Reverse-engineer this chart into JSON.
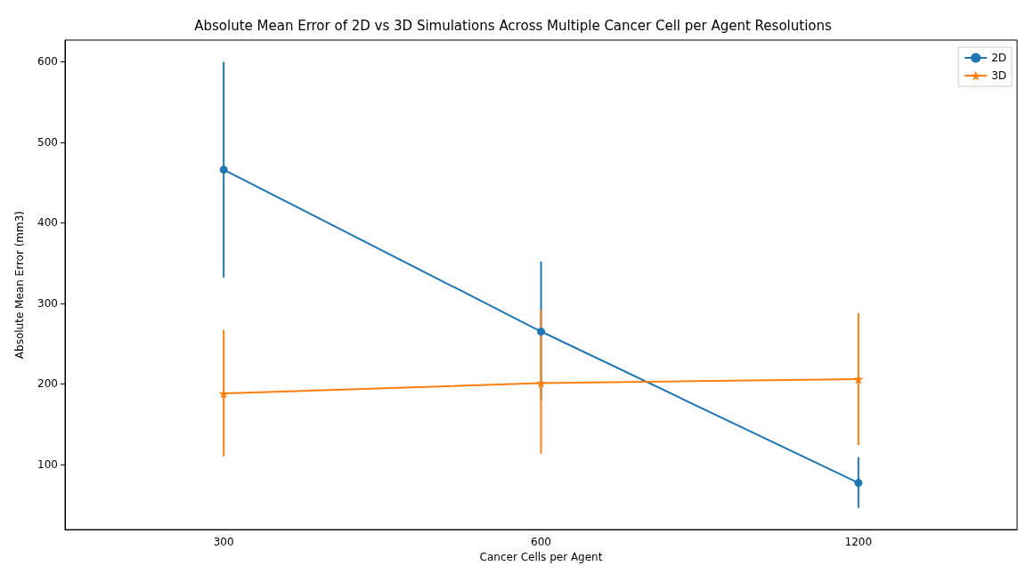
{
  "chart_data": {
    "type": "line",
    "title": "Absolute Mean Error of 2D vs 3D Simulations Across Multiple Cancer Cell per Agent Resolutions",
    "xlabel": "Cancer Cells per Agent",
    "ylabel": "Absolute Mean Error (mm3)",
    "categories": [
      "300",
      "600",
      "1200"
    ],
    "series": [
      {
        "name": "2D",
        "color": "#1f77b4",
        "marker": "circle",
        "values": [
          466,
          265,
          77
        ],
        "errors": [
          [
            332,
            600
          ],
          [
            179,
            352
          ],
          [
            46,
            109
          ]
        ]
      },
      {
        "name": "3D",
        "color": "#ff7f0e",
        "marker": "star",
        "values": [
          188,
          201,
          206
        ],
        "errors": [
          [
            110,
            267
          ],
          [
            113,
            292
          ],
          [
            124,
            288
          ]
        ]
      }
    ],
    "ylim": [
      19,
      627
    ],
    "yticks": [
      100,
      200,
      300,
      400,
      500,
      600
    ],
    "grid": false,
    "legend": "top right",
    "line_style": "solid"
  }
}
